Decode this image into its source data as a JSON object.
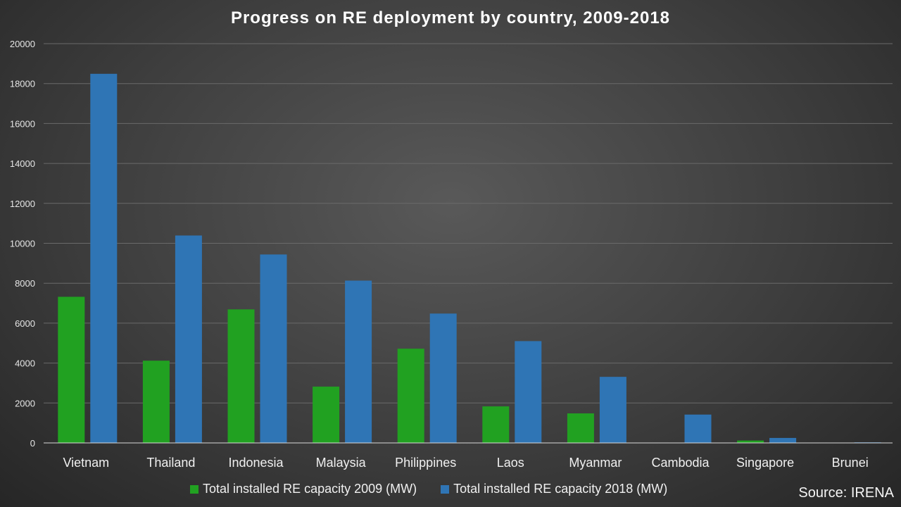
{
  "chart_data": {
    "type": "bar",
    "title": "Progress on RE deployment  by country,  2009-2018",
    "xlabel": "",
    "ylabel": "",
    "ylim": [
      0,
      20000
    ],
    "yticks": [
      0,
      2000,
      4000,
      6000,
      8000,
      10000,
      12000,
      14000,
      16000,
      18000,
      20000
    ],
    "grid": true,
    "legend_position": "bottom",
    "categories": [
      "Vietnam",
      "Thailand",
      "Indonesia",
      "Malaysia",
      "Philippines",
      "Laos",
      "Myanmar",
      "Cambodia",
      "Singapore",
      "Brunei"
    ],
    "series": [
      {
        "name": "Total installed RE capacity 2009 (MW)",
        "color": "#21a121",
        "values": [
          7320,
          4120,
          6690,
          2820,
          4720,
          1830,
          1480,
          0,
          120,
          0
        ]
      },
      {
        "name": "Total installed RE capacity 2018 (MW)",
        "color": "#2f75b5",
        "values": [
          18490,
          10390,
          9440,
          8130,
          6480,
          5100,
          3310,
          1420,
          250,
          30
        ]
      }
    ]
  },
  "source": "Source: IRENA"
}
